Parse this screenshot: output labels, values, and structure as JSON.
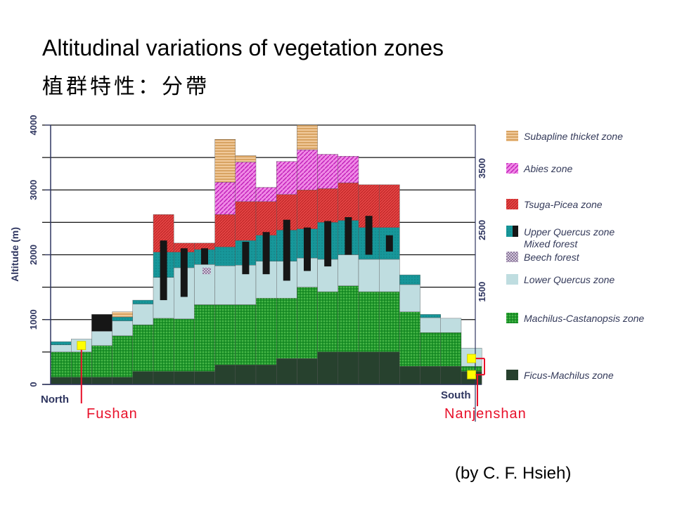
{
  "title": "Altitudinal variations of vegetation zones",
  "subtitle": "植群特性：分帶",
  "credit": "(by C. F. Hsieh)",
  "chart_data": {
    "type": "bar",
    "stacked": true,
    "ylabel": "Altitude (m)",
    "ylim": [
      0,
      4000
    ],
    "yticks_left": [
      "0",
      "1000",
      "2000",
      "3000",
      "4000"
    ],
    "yticks_right": [
      "1500",
      "2500",
      "3500"
    ],
    "right_axis_values": [
      1500,
      2500,
      3500
    ],
    "xlabel_left": "North",
    "xlabel_right": "South",
    "grid": true,
    "zones": [
      {
        "key": "subalpine",
        "name": "Subapline thicket zone",
        "color": "#e8b47a"
      },
      {
        "key": "abies",
        "name": "Abies zone",
        "color": "#e055d8"
      },
      {
        "key": "tsuga",
        "name": "Tsuga-Picea zone",
        "color": "#e23a3a"
      },
      {
        "key": "upper",
        "name": "Upper Quercus zone",
        "color": "#17979a"
      },
      {
        "key": "mixed",
        "name": "Mixed forest",
        "color": "#1b1b1b"
      },
      {
        "key": "beech",
        "name": "Beech forest",
        "color": "#b8a8c4"
      },
      {
        "key": "lower",
        "name": "Lower Quercus zone",
        "color": "#bfdde0"
      },
      {
        "key": "machilus",
        "name": "Machilus-Castanopsis zone",
        "color": "#1f9a2c"
      },
      {
        "key": "ficus",
        "name": "Ficus-Machilus zone",
        "color": "#27412e"
      }
    ],
    "columns": [
      {
        "stack": [
          {
            "z": "ficus",
            "to": 110
          },
          {
            "z": "machilus",
            "to": 500
          },
          {
            "z": "lower",
            "to": 610
          },
          {
            "z": "upper",
            "to": 660
          }
        ]
      },
      {
        "stack": [
          {
            "z": "ficus",
            "to": 110
          },
          {
            "z": "machilus",
            "to": 500
          },
          {
            "z": "lower",
            "to": 700
          }
        ]
      },
      {
        "stack": [
          {
            "z": "ficus",
            "to": 110
          },
          {
            "z": "machilus",
            "to": 600
          },
          {
            "z": "lower",
            "to": 820
          },
          {
            "z": "mixed",
            "to": 1080
          }
        ]
      },
      {
        "stack": [
          {
            "z": "ficus",
            "to": 110
          },
          {
            "z": "machilus",
            "to": 750
          },
          {
            "z": "lower",
            "to": 980
          },
          {
            "z": "upper",
            "to": 1040
          },
          {
            "z": "subalpine",
            "to": 1120
          }
        ]
      },
      {
        "stack": [
          {
            "z": "ficus",
            "to": 200
          },
          {
            "z": "machilus",
            "to": 920
          },
          {
            "z": "lower",
            "to": 1240
          },
          {
            "z": "upper",
            "to": 1300
          }
        ]
      },
      {
        "stack": [
          {
            "z": "ficus",
            "to": 200
          },
          {
            "z": "machilus",
            "to": 1020
          },
          {
            "z": "lower",
            "to": 1650
          },
          {
            "z": "upper",
            "to": 2040
          },
          {
            "z": "tsuga",
            "to": 2620
          }
        ],
        "mixed_band": [
          1300,
          2220
        ]
      },
      {
        "stack": [
          {
            "z": "ficus",
            "to": 200
          },
          {
            "z": "machilus",
            "to": 1010
          },
          {
            "z": "lower",
            "to": 1800
          },
          {
            "z": "upper",
            "to": 2040
          },
          {
            "z": "tsuga",
            "to": 2180
          }
        ],
        "mixed_band": [
          1350,
          2100
        ]
      },
      {
        "stack": [
          {
            "z": "ficus",
            "to": 200
          },
          {
            "z": "machilus",
            "to": 1230
          },
          {
            "z": "lower",
            "to": 1850
          },
          {
            "z": "upper",
            "to": 2080
          },
          {
            "z": "tsuga",
            "to": 2180
          }
        ],
        "beech_band": [
          1700,
          1800
        ],
        "mixed_band": [
          1850,
          2100
        ]
      },
      {
        "stack": [
          {
            "z": "ficus",
            "to": 300
          },
          {
            "z": "machilus",
            "to": 1230
          },
          {
            "z": "lower",
            "to": 1830
          },
          {
            "z": "upper",
            "to": 2120
          },
          {
            "z": "tsuga",
            "to": 2620
          },
          {
            "z": "abies",
            "to": 3120
          },
          {
            "z": "subalpine",
            "to": 3780
          }
        ]
      },
      {
        "stack": [
          {
            "z": "ficus",
            "to": 300
          },
          {
            "z": "machilus",
            "to": 1230
          },
          {
            "z": "lower",
            "to": 1840
          },
          {
            "z": "upper",
            "to": 2220
          },
          {
            "z": "tsuga",
            "to": 2820
          },
          {
            "z": "abies",
            "to": 3430
          },
          {
            "z": "subalpine",
            "to": 3530
          }
        ],
        "mixed_band": [
          1700,
          2200
        ]
      },
      {
        "stack": [
          {
            "z": "ficus",
            "to": 300
          },
          {
            "z": "machilus",
            "to": 1330
          },
          {
            "z": "lower",
            "to": 1900
          },
          {
            "z": "upper",
            "to": 2300
          },
          {
            "z": "tsuga",
            "to": 2820
          },
          {
            "z": "abies",
            "to": 3040
          }
        ],
        "mixed_band": [
          1700,
          2350
        ]
      },
      {
        "stack": [
          {
            "z": "ficus",
            "to": 400
          },
          {
            "z": "machilus",
            "to": 1330
          },
          {
            "z": "lower",
            "to": 1900
          },
          {
            "z": "upper",
            "to": 2380
          },
          {
            "z": "tsuga",
            "to": 2930
          },
          {
            "z": "abies",
            "to": 3440
          }
        ],
        "mixed_band": [
          1600,
          2540
        ]
      },
      {
        "stack": [
          {
            "z": "ficus",
            "to": 400
          },
          {
            "z": "machilus",
            "to": 1500
          },
          {
            "z": "lower",
            "to": 1950
          },
          {
            "z": "upper",
            "to": 2400
          },
          {
            "z": "tsuga",
            "to": 3000
          },
          {
            "z": "abies",
            "to": 3620
          },
          {
            "z": "subalpine",
            "to": 4000
          }
        ],
        "mixed_band": [
          1750,
          2420
        ]
      },
      {
        "stack": [
          {
            "z": "ficus",
            "to": 500
          },
          {
            "z": "machilus",
            "to": 1430
          },
          {
            "z": "lower",
            "to": 1930
          },
          {
            "z": "upper",
            "to": 2500
          },
          {
            "z": "tsuga",
            "to": 3020
          },
          {
            "z": "abies",
            "to": 3550
          }
        ],
        "mixed_band": [
          1820,
          2520
        ]
      },
      {
        "stack": [
          {
            "z": "ficus",
            "to": 500
          },
          {
            "z": "machilus",
            "to": 1520
          },
          {
            "z": "lower",
            "to": 2000
          },
          {
            "z": "upper",
            "to": 2530
          },
          {
            "z": "tsuga",
            "to": 3110
          },
          {
            "z": "abies",
            "to": 3520
          }
        ],
        "mixed_band": [
          2000,
          2580
        ]
      },
      {
        "stack": [
          {
            "z": "ficus",
            "to": 500
          },
          {
            "z": "machilus",
            "to": 1430
          },
          {
            "z": "lower",
            "to": 1930
          },
          {
            "z": "upper",
            "to": 2420
          },
          {
            "z": "tsuga",
            "to": 3080
          }
        ],
        "mixed_band": [
          2000,
          2600
        ]
      },
      {
        "stack": [
          {
            "z": "ficus",
            "to": 500
          },
          {
            "z": "machilus",
            "to": 1430
          },
          {
            "z": "lower",
            "to": 1930
          },
          {
            "z": "upper",
            "to": 2420
          },
          {
            "z": "tsuga",
            "to": 3080
          }
        ],
        "mixed_band": [
          2050,
          2300
        ]
      },
      {
        "stack": [
          {
            "z": "ficus",
            "to": 280
          },
          {
            "z": "machilus",
            "to": 1120
          },
          {
            "z": "lower",
            "to": 1540
          },
          {
            "z": "upper",
            "to": 1690
          }
        ]
      },
      {
        "stack": [
          {
            "z": "ficus",
            "to": 280
          },
          {
            "z": "machilus",
            "to": 800
          },
          {
            "z": "lower",
            "to": 1030
          },
          {
            "z": "upper",
            "to": 1080
          }
        ]
      },
      {
        "stack": [
          {
            "z": "ficus",
            "to": 280
          },
          {
            "z": "machilus",
            "to": 800
          },
          {
            "z": "lower",
            "to": 1020
          }
        ]
      },
      {
        "stack": [
          {
            "z": "ficus",
            "to": 200
          },
          {
            "z": "machilus",
            "to": 280
          },
          {
            "z": "lower",
            "to": 560
          }
        ]
      }
    ],
    "sites": [
      {
        "name": "Fushan",
        "column": 1,
        "altitude": 600
      },
      {
        "name": "Nanjenshan",
        "column": 20,
        "altitudes": [
          400,
          150
        ]
      }
    ]
  }
}
